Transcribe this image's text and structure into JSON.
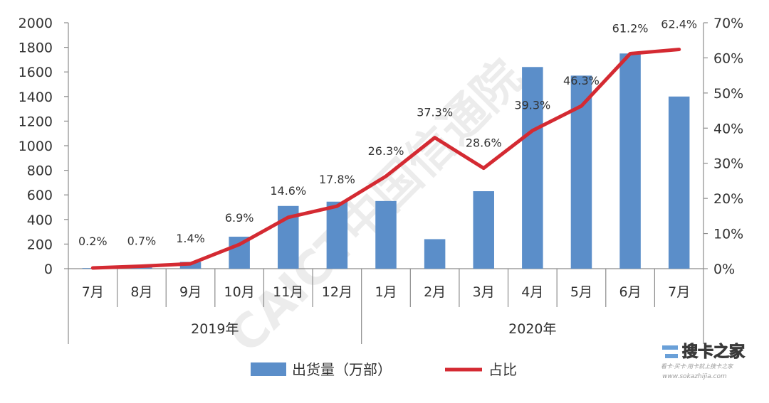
{
  "chart_data": {
    "type": "bar+line",
    "groups": [
      {
        "label": "2019年",
        "categories": [
          "7月",
          "8月",
          "9月",
          "10月",
          "11月",
          "12月"
        ]
      },
      {
        "label": "2020年",
        "categories": [
          "1月",
          "2月",
          "3月",
          "4月",
          "5月",
          "6月",
          "7月"
        ]
      }
    ],
    "categories": [
      "7月",
      "8月",
      "9月",
      "10月",
      "11月",
      "12月",
      "1月",
      "2月",
      "3月",
      "4月",
      "5月",
      "6月",
      "7月"
    ],
    "series": [
      {
        "name": "出货量（万部）",
        "type": "bar",
        "axis": "left",
        "color": "#5b8ec9",
        "values": [
          5,
          10,
          55,
          260,
          510,
          545,
          550,
          240,
          630,
          1640,
          1570,
          1750,
          1400
        ]
      },
      {
        "name": "占比",
        "type": "line",
        "axis": "right",
        "color": "#d42a32",
        "values": [
          0.2,
          0.7,
          1.4,
          6.9,
          14.6,
          17.8,
          26.3,
          37.3,
          28.6,
          39.3,
          46.3,
          61.2,
          62.4
        ],
        "labels": [
          "0.2%",
          "0.7%",
          "1.4%",
          "6.9%",
          "14.6%",
          "17.8%",
          "26.3%",
          "37.3%",
          "28.6%",
          "39.3%",
          "46.3%",
          "61.2%",
          "62.4%"
        ]
      }
    ],
    "y_left": {
      "min": 0,
      "max": 2000,
      "ticks": [
        "0",
        "200",
        "400",
        "600",
        "800",
        "1000",
        "1200",
        "1400",
        "1600",
        "1800",
        "2000"
      ]
    },
    "y_right": {
      "min": 0,
      "max": 70,
      "ticks": [
        "0%",
        "10%",
        "20%",
        "30%",
        "40%",
        "50%",
        "60%",
        "70%"
      ]
    },
    "grid": false,
    "legend_position": "bottom"
  },
  "watermark": {
    "text": "CAICT中国信通院"
  },
  "brand": {
    "text": "搜卡之家",
    "tagline": "看卡·买卡·用卡就上搜卡之家",
    "url": "www.sokazhijia.com"
  }
}
